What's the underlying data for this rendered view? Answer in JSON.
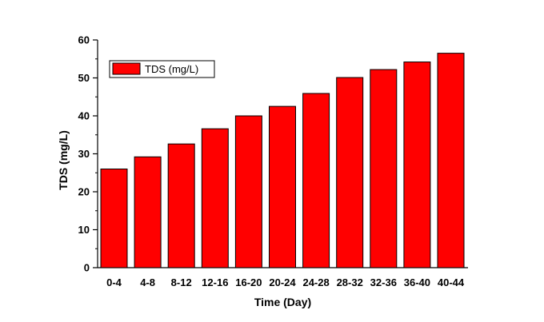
{
  "chart_data": {
    "type": "bar",
    "categories": [
      "0-4",
      "4-8",
      "8-12",
      "12-16",
      "16-20",
      "20-24",
      "24-28",
      "28-32",
      "32-36",
      "36-40",
      "40-44"
    ],
    "series": [
      {
        "name": "TDS (mg/L)",
        "values": [
          26,
          29.2,
          32.6,
          36.6,
          40,
          42.5,
          45.9,
          50.1,
          52.2,
          54.2,
          56.5
        ],
        "color": "#ff0000"
      }
    ],
    "xlabel": "Time (Day)",
    "ylabel": "TDS (mg/L)",
    "ylim": [
      0,
      60
    ],
    "yticks": [
      "0",
      "10",
      "20",
      "30",
      "40",
      "50",
      "60"
    ],
    "legend_position": "top-left",
    "grid": false
  }
}
